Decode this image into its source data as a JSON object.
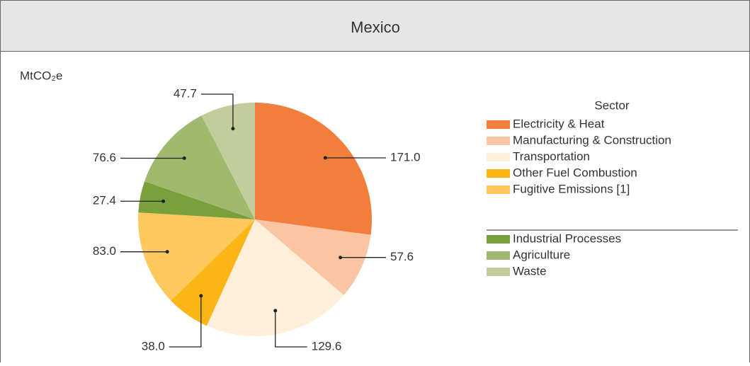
{
  "chart_data": {
    "type": "pie",
    "title": "Mexico",
    "unit_label": "MtCO₂e",
    "legend_title": "Sector",
    "categories": [
      "Electricity & Heat",
      "Manufacturing & Construction",
      "Transportation",
      "Other Fuel Combustion",
      "Fugitive Emissions [1]",
      "Industrial Processes",
      "Agriculture",
      "Waste"
    ],
    "values": [
      171.0,
      57.6,
      129.6,
      38.0,
      83.0,
      27.4,
      76.6,
      47.7
    ],
    "value_labels": [
      "171.0",
      "57.6",
      "129.6",
      "38.0",
      "83.0",
      "27.4",
      "76.6",
      "47.7"
    ],
    "colors": [
      "#f17e3a",
      "#fbc4a2",
      "#fdefd9",
      "#fbb515",
      "#fdc95e",
      "#79a03b",
      "#a0b96f",
      "#c3cd9b"
    ]
  }
}
